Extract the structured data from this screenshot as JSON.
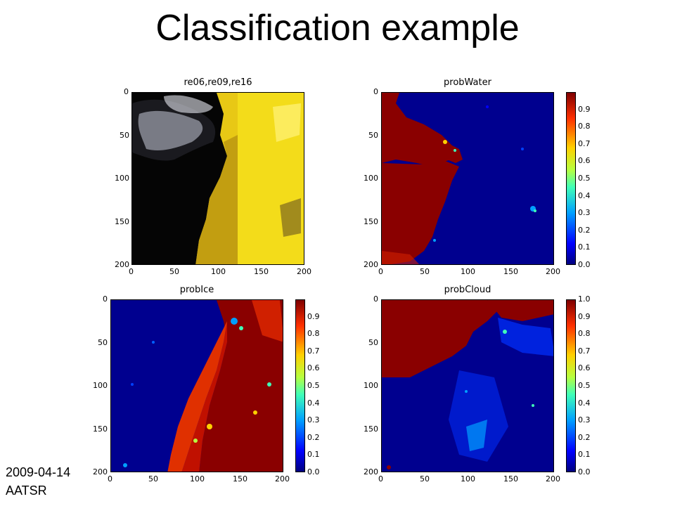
{
  "slide": {
    "title": "Classification example",
    "footer_date": "2009-04-14",
    "footer_sensor": "AATSR"
  },
  "chart_data": [
    {
      "type": "heatmap",
      "title": "re06,re09,re16",
      "xlim": [
        0,
        200
      ],
      "ylim": [
        200,
        0
      ],
      "xticks": [
        "0",
        "50",
        "100",
        "150",
        "200"
      ],
      "yticks": [
        "0",
        "50",
        "100",
        "150",
        "200"
      ],
      "colorbar": false,
      "palette": "rgb-composite"
    },
    {
      "type": "heatmap",
      "title": "probWater",
      "xlim": [
        0,
        200
      ],
      "ylim": [
        200,
        0
      ],
      "xticks": [
        "0",
        "50",
        "100",
        "150",
        "200"
      ],
      "yticks": [
        "0",
        "50",
        "100",
        "150",
        "200"
      ],
      "colorbar": true,
      "colorbar_ticks": [
        "0.0",
        "0.1",
        "0.2",
        "0.3",
        "0.4",
        "0.5",
        "0.6",
        "0.7",
        "0.8",
        "0.9"
      ],
      "colorbar_range": [
        0,
        1
      ],
      "palette": "jet"
    },
    {
      "type": "heatmap",
      "title": "probIce",
      "xlim": [
        0,
        200
      ],
      "ylim": [
        200,
        0
      ],
      "xticks": [
        "0",
        "50",
        "100",
        "150",
        "200"
      ],
      "yticks": [
        "0",
        "50",
        "100",
        "150",
        "200"
      ],
      "colorbar": true,
      "colorbar_ticks": [
        "0.0",
        "0.1",
        "0.2",
        "0.3",
        "0.4",
        "0.5",
        "0.6",
        "0.7",
        "0.8",
        "0.9"
      ],
      "colorbar_range": [
        0,
        1
      ],
      "palette": "jet"
    },
    {
      "type": "heatmap",
      "title": "probCloud",
      "xlim": [
        0,
        200
      ],
      "ylim": [
        200,
        0
      ],
      "xticks": [
        "0",
        "50",
        "100",
        "150",
        "200"
      ],
      "yticks": [
        "0",
        "50",
        "100",
        "150",
        "200"
      ],
      "colorbar": true,
      "colorbar_ticks": [
        "0.0",
        "0.1",
        "0.2",
        "0.3",
        "0.4",
        "0.5",
        "0.6",
        "0.7",
        "0.8",
        "0.9",
        "1.0"
      ],
      "colorbar_range": [
        0,
        1
      ],
      "palette": "jet"
    }
  ]
}
